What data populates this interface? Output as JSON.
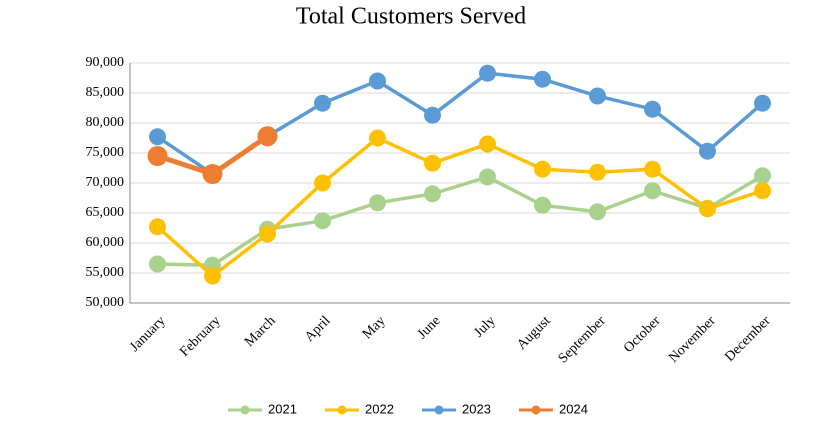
{
  "chart_data": {
    "type": "line",
    "title": "Total Customers Served",
    "categories": [
      "January",
      "February",
      "March",
      "April",
      "May",
      "June",
      "July",
      "August",
      "September",
      "October",
      "November",
      "December"
    ],
    "series": [
      {
        "name": "2021",
        "color": "#a9d18e",
        "values": [
          56500,
          56300,
          62300,
          63700,
          66700,
          68200,
          71000,
          66300,
          65200,
          68700,
          65800,
          71200
        ]
      },
      {
        "name": "2022",
        "color": "#ffc000",
        "values": [
          62700,
          54500,
          61500,
          70000,
          77500,
          73300,
          76500,
          72300,
          71800,
          72300,
          65700,
          68700
        ]
      },
      {
        "name": "2023",
        "color": "#5b9bd5",
        "values": [
          77700,
          71500,
          77800,
          83300,
          87000,
          81300,
          88300,
          87300,
          84500,
          82300,
          75300,
          83300
        ]
      },
      {
        "name": "2024",
        "color": "#ed7d31",
        "values": [
          74500,
          71500,
          77800,
          null,
          null,
          null,
          null,
          null,
          null,
          null,
          null,
          null
        ]
      }
    ],
    "ylim": [
      50000,
      90000
    ],
    "yticks": [
      {
        "value": 50000,
        "label": "50,000"
      },
      {
        "value": 55000,
        "label": "55,000"
      },
      {
        "value": 60000,
        "label": "60,000"
      },
      {
        "value": 65000,
        "label": "65,000"
      },
      {
        "value": 70000,
        "label": "70,000"
      },
      {
        "value": 75000,
        "label": "75,000"
      },
      {
        "value": 80000,
        "label": "80,000"
      },
      {
        "value": 85000,
        "label": "85,000"
      },
      {
        "value": 90000,
        "label": "90,000"
      }
    ],
    "grid": true,
    "legend": "bottom"
  }
}
